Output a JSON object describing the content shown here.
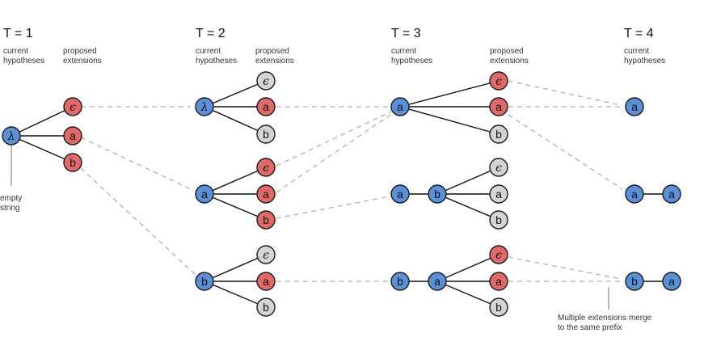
{
  "steps": [
    {
      "title": "T = 1",
      "current_label": [
        "current",
        "hypotheses"
      ],
      "proposed_label": [
        "proposed",
        "extensions"
      ]
    },
    {
      "title": "T = 2",
      "current_label": [
        "current",
        "hypotheses"
      ],
      "proposed_label": [
        "proposed",
        "extensions"
      ]
    },
    {
      "title": "T = 3",
      "current_label": [
        "current",
        "hypotheses"
      ],
      "proposed_label": [
        "proposed",
        "extensions"
      ]
    },
    {
      "title": "T = 4",
      "current_label": [
        "current",
        "hypotheses"
      ]
    }
  ],
  "annotations": {
    "empty_string": [
      "empty",
      "string"
    ],
    "merge_note": [
      "Multiple extensions merge",
      "to the same prefix"
    ]
  },
  "symbols": {
    "lambda": "λ",
    "epsilon": "ϵ",
    "a": "a",
    "b": "b"
  },
  "colors": {
    "hypothesis": "#5b8fd6",
    "kept_extension": "#e06a6a",
    "dropped_extension": "#d4d4d4",
    "stroke": "#1a1a1a",
    "merge_line": "#b0b0b0"
  }
}
